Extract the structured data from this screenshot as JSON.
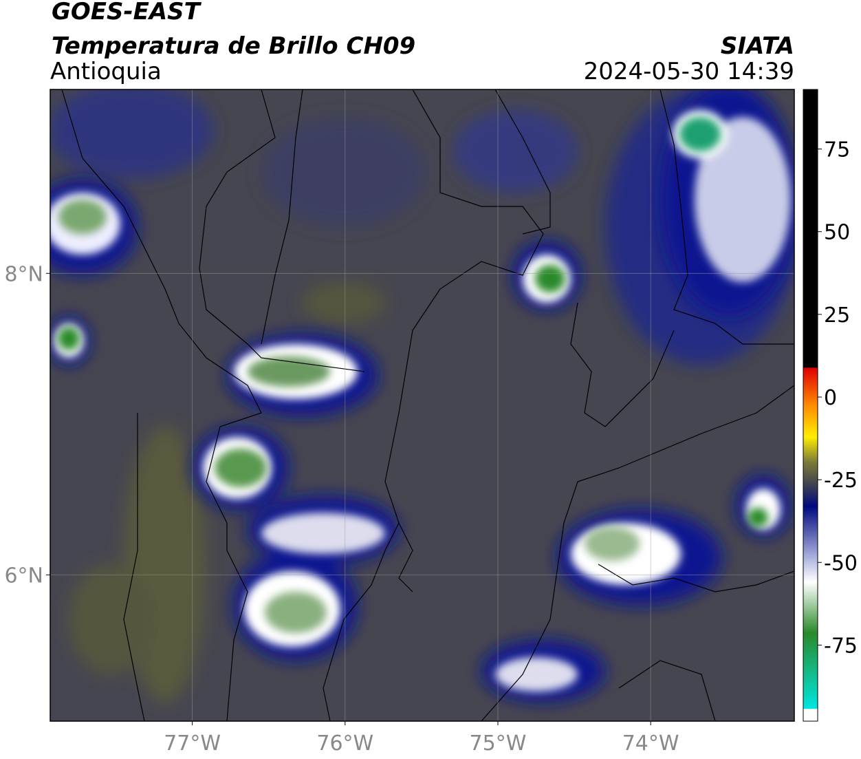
{
  "header": {
    "title": "GOES-EAST",
    "subtitle": "Temperatura de Brillo CH09",
    "region": "Antioquia",
    "source": "SIATA",
    "datetime": "2024-05-30 14:39"
  },
  "map": {
    "xlim": [
      -77.93,
      -73.06
    ],
    "ylim": [
      5.03,
      9.22
    ],
    "xticks": [
      {
        "value": -77,
        "label": "77°W"
      },
      {
        "value": -76,
        "label": "76°W"
      },
      {
        "value": -75,
        "label": "75°W"
      },
      {
        "value": -74,
        "label": "74°W"
      }
    ],
    "yticks": [
      {
        "value": 8,
        "label": "8°N"
      },
      {
        "value": 6,
        "label": "6°N"
      }
    ],
    "grid": true
  },
  "colorbar": {
    "lim": [
      -98,
      93
    ],
    "ticks": [
      75,
      50,
      25,
      0,
      -25,
      -50,
      -75
    ]
  }
}
